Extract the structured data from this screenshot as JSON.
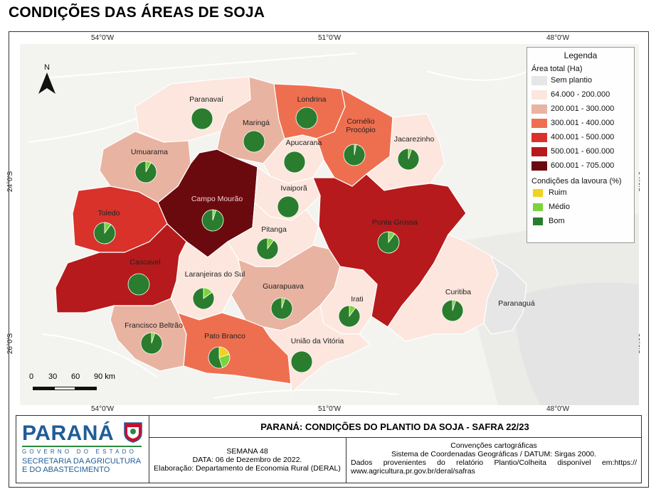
{
  "title": "CONDIÇÕES DAS ÁREAS DE SOJA",
  "coords": {
    "top": [
      "54°0'W",
      "51°0'W",
      "48°0'W"
    ],
    "bottom": [
      "54°0'W",
      "51°0'W",
      "48°0'W"
    ],
    "left": [
      "24°0'S",
      "26°0'S"
    ],
    "right": [
      "24°0'S",
      "26°0'S"
    ]
  },
  "legend": {
    "title": "Legenda",
    "area_title": "Área total (Ha)",
    "area_classes": [
      {
        "label": "Sem plantio",
        "color": "#e6e6e6"
      },
      {
        "label": "64.000 - 200.000",
        "color": "#fce6de"
      },
      {
        "label": "200.001 - 300.000",
        "color": "#e9b3a1"
      },
      {
        "label": "300.001 - 400.000",
        "color": "#ee6f4f"
      },
      {
        "label": "400.001 - 500.000",
        "color": "#d8322b"
      },
      {
        "label": "500.001 - 600.000",
        "color": "#b61a1c"
      },
      {
        "label": "600.001 - 705.000",
        "color": "#6b0a0e"
      }
    ],
    "cond_title": "Condições da lavoura (%)",
    "cond_classes": [
      {
        "label": "Ruim",
        "color": "#f2d21e"
      },
      {
        "label": "Médio",
        "color": "#7dd33b"
      },
      {
        "label": "Bom",
        "color": "#2a7d2e"
      }
    ]
  },
  "regions": [
    {
      "name": "Paranavaí",
      "class": 1,
      "ruim": 0,
      "medio": 0,
      "bom": 100
    },
    {
      "name": "Maringá",
      "class": 2,
      "ruim": 0,
      "medio": 0,
      "bom": 100
    },
    {
      "name": "Londrina",
      "class": 3,
      "ruim": 0,
      "medio": 0,
      "bom": 100
    },
    {
      "name": "Cornélio Procópio",
      "class": 3,
      "ruim": 0,
      "medio": 3,
      "bom": 97
    },
    {
      "name": "Jacarezinho",
      "class": 1,
      "ruim": 0,
      "medio": 5,
      "bom": 95
    },
    {
      "name": "Umuarama",
      "class": 2,
      "ruim": 0,
      "medio": 8,
      "bom": 92
    },
    {
      "name": "Apucarana",
      "class": 1,
      "ruim": 0,
      "medio": 0,
      "bom": 100
    },
    {
      "name": "Campo Mourão",
      "class": 6,
      "ruim": 0,
      "medio": 5,
      "bom": 95
    },
    {
      "name": "Ivaiporã",
      "class": 1,
      "ruim": 0,
      "medio": 0,
      "bom": 100
    },
    {
      "name": "Toledo",
      "class": 4,
      "ruim": 0,
      "medio": 10,
      "bom": 90
    },
    {
      "name": "Ponta Grossa",
      "class": 5,
      "ruim": 0,
      "medio": 10,
      "bom": 90
    },
    {
      "name": "Pitanga",
      "class": 1,
      "ruim": 0,
      "medio": 10,
      "bom": 90
    },
    {
      "name": "Cascavel",
      "class": 5,
      "ruim": 0,
      "medio": 0,
      "bom": 100
    },
    {
      "name": "Laranjeiras do Sul",
      "class": 1,
      "ruim": 0,
      "medio": 15,
      "bom": 85
    },
    {
      "name": "Guarapuava",
      "class": 2,
      "ruim": 0,
      "medio": 5,
      "bom": 95
    },
    {
      "name": "Irati",
      "class": 1,
      "ruim": 0,
      "medio": 10,
      "bom": 90
    },
    {
      "name": "Curitiba",
      "class": 1,
      "ruim": 0,
      "medio": 5,
      "bom": 95
    },
    {
      "name": "Paranaguá",
      "class": 0,
      "ruim": 0,
      "medio": 0,
      "bom": 0
    },
    {
      "name": "Francisco Beltrão",
      "class": 2,
      "ruim": 0,
      "medio": 5,
      "bom": 95
    },
    {
      "name": "Pato Branco",
      "class": 3,
      "ruim": 20,
      "medio": 25,
      "bom": 55
    },
    {
      "name": "União da Vitória",
      "class": 1,
      "ruim": 0,
      "medio": 0,
      "bom": 100
    }
  ],
  "scale": {
    "labels": [
      "0",
      "30",
      "60",
      "90 km"
    ]
  },
  "north": "N",
  "footer": {
    "logo_name": "PARANÁ",
    "logo_gov": "GOVERNO DO ESTADO",
    "logo_sec1": "SECRETARIA DA AGRICULTURA",
    "logo_sec2": "E DO ABASTECIMENTO",
    "sheet_title": "PARANÁ: CONDIÇÕES DO PLANTIO DA SOJA - SAFRA 22/23",
    "week": "SEMANA 48",
    "date": "DATA: 06 de Dezembro de 2022.",
    "author": "Elaboração: Departamento de Economia Rural (DERAL)",
    "conv_title": "Convenções cartográficas",
    "conv_system": "Sistema de Coordenadas Geográficas / DATUM: Sirgas 2000.",
    "source1": "Dados provenientes do relatório Plantio/Colheita disponível em:https://",
    "source2": "www.agricultura.pr.gov.br/deral/safras"
  }
}
